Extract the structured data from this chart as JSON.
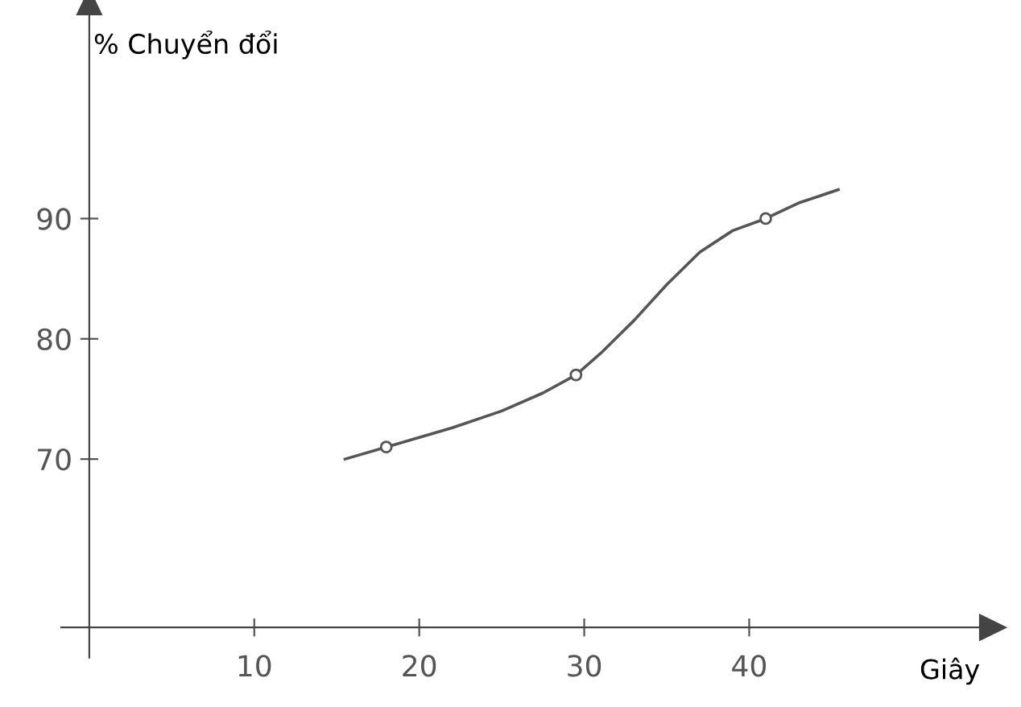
{
  "chart_data": {
    "type": "line",
    "xlabel": "Giây",
    "ylabel": "% Chuyển đổi",
    "xlim": [
      -1.7,
      54
    ],
    "ylim": [
      53.5,
      107
    ],
    "xticks": [
      10,
      20,
      30,
      40
    ],
    "yticks": [
      70,
      80,
      90
    ],
    "series": [
      {
        "color": "#555555",
        "marker": "none",
        "x": [
          15.5,
          18,
          20,
          22,
          25,
          27.5,
          29.5,
          31,
          33,
          35,
          37,
          39,
          41,
          43,
          45.4
        ],
        "values": [
          70,
          71,
          71.8,
          72.6,
          74,
          75.5,
          77,
          78.8,
          81.5,
          84.5,
          87.2,
          89,
          90,
          91.3,
          92.4
        ]
      },
      {
        "type": "scatter",
        "color": "#555555",
        "marker": "circle",
        "x": [
          18,
          29.5,
          41
        ],
        "values": [
          71,
          77,
          90
        ]
      }
    ],
    "grid": false,
    "legend": false
  }
}
